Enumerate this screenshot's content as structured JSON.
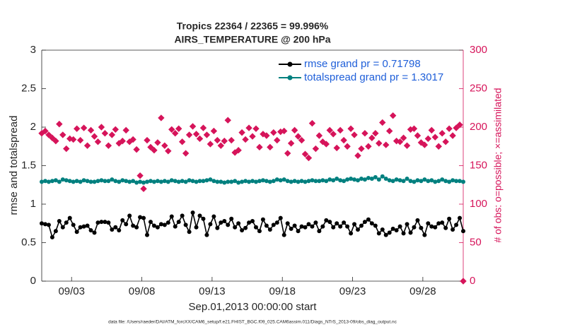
{
  "chart_data": {
    "type": "line",
    "title": "Tropics 22364 / 22365 = 99.996%",
    "subtitle": "AIRS_TEMPERATURE @ 200 hPa",
    "xlabel": "Sep.01,2013 00:00:00 start",
    "ylabel": "rmse and totalspread",
    "y2label": "# of obs: o=possible; ×=assimilated",
    "footnote": "data file: /Users/raeder/DAI/ATM_forcXX/CAM6_setup/f.e21.FHIST_BGC.f09_025.CAM6assim.011/Diags_NTrS_2013-09/obs_diag_output.nc",
    "xlim": [
      -0.125,
      29.875
    ],
    "xticks": [
      {
        "value": 2,
        "label": "09/03"
      },
      {
        "value": 7,
        "label": "09/08"
      },
      {
        "value": 12,
        "label": "09/13"
      },
      {
        "value": 17,
        "label": "09/18"
      },
      {
        "value": 22,
        "label": "09/23"
      },
      {
        "value": 27,
        "label": "09/28"
      }
    ],
    "ylim": [
      0,
      3
    ],
    "yticks": [
      0,
      0.5,
      1,
      1.5,
      2,
      2.5,
      3
    ],
    "y2lim": [
      0,
      300
    ],
    "y2ticks": [
      0,
      50,
      100,
      150,
      200,
      250,
      300
    ],
    "y2color": "#d6145a",
    "legend": "top-right",
    "x": [
      -0.125,
      0.125,
      0.375,
      0.625,
      0.875,
      1.125,
      1.375,
      1.625,
      1.875,
      2.125,
      2.375,
      2.625,
      2.875,
      3.125,
      3.375,
      3.625,
      3.875,
      4.125,
      4.375,
      4.625,
      4.875,
      5.125,
      5.375,
      5.625,
      5.875,
      6.125,
      6.375,
      6.625,
      6.875,
      7.125,
      7.375,
      7.625,
      7.875,
      8.125,
      8.375,
      8.625,
      8.875,
      9.125,
      9.375,
      9.625,
      9.875,
      10.125,
      10.375,
      10.625,
      10.875,
      11.125,
      11.375,
      11.625,
      11.875,
      12.125,
      12.375,
      12.625,
      12.875,
      13.125,
      13.375,
      13.625,
      13.875,
      14.125,
      14.375,
      14.625,
      14.875,
      15.125,
      15.375,
      15.625,
      15.875,
      16.125,
      16.375,
      16.625,
      16.875,
      17.125,
      17.375,
      17.625,
      17.875,
      18.125,
      18.375,
      18.625,
      18.875,
      19.125,
      19.375,
      19.625,
      19.875,
      20.125,
      20.375,
      20.625,
      20.875,
      21.125,
      21.375,
      21.625,
      21.875,
      22.125,
      22.375,
      22.625,
      22.875,
      23.125,
      23.375,
      23.625,
      23.875,
      24.125,
      24.375,
      24.625,
      24.875,
      25.125,
      25.375,
      25.625,
      25.875,
      26.125,
      26.375,
      26.625,
      26.875,
      27.125,
      27.375,
      27.625,
      27.875,
      28.125,
      28.375,
      28.625,
      28.875,
      29.125,
      29.375,
      29.625,
      29.875
    ],
    "series": [
      {
        "name": "rmse grand pr = 0.71798",
        "color": "#000000",
        "line": true,
        "values": [
          0.75,
          0.74,
          0.73,
          0.57,
          0.65,
          0.78,
          0.7,
          0.76,
          0.82,
          0.73,
          0.64,
          0.7,
          0.71,
          0.72,
          0.66,
          0.63,
          0.76,
          0.77,
          0.77,
          0.76,
          0.67,
          0.7,
          0.66,
          0.79,
          0.74,
          0.85,
          0.72,
          0.7,
          0.83,
          0.82,
          0.6,
          0.77,
          0.72,
          0.7,
          0.74,
          0.73,
          0.76,
          0.84,
          0.71,
          0.77,
          0.85,
          0.73,
          0.64,
          0.89,
          0.7,
          0.85,
          0.81,
          0.6,
          0.74,
          0.84,
          0.69,
          0.76,
          0.78,
          0.73,
          0.81,
          0.7,
          0.75,
          0.66,
          0.69,
          0.76,
          0.78,
          0.7,
          0.65,
          0.8,
          0.72,
          0.67,
          0.73,
          0.76,
          0.82,
          0.6,
          0.75,
          0.68,
          0.72,
          0.65,
          0.71,
          0.7,
          0.74,
          0.71,
          0.76,
          0.65,
          0.71,
          0.79,
          0.77,
          0.7,
          0.75,
          0.71,
          0.76,
          0.71,
          0.62,
          0.74,
          0.67,
          0.72,
          0.77,
          0.8,
          0.75,
          0.72,
          0.62,
          0.67,
          0.6,
          0.63,
          0.68,
          0.66,
          0.71,
          0.62,
          0.74,
          0.63,
          0.7,
          0.79,
          0.69,
          0.6,
          0.75,
          0.71,
          0.7,
          0.75,
          0.76,
          0.69,
          0.81,
          0.67,
          0.73,
          0.82,
          0.65
        ]
      },
      {
        "name": "totalspread grand pr = 1.3017",
        "color": "#00807f",
        "line": true,
        "values": [
          1.29,
          1.3,
          1.29,
          1.3,
          1.31,
          1.29,
          1.32,
          1.31,
          1.3,
          1.29,
          1.3,
          1.29,
          1.31,
          1.3,
          1.29,
          1.29,
          1.3,
          1.31,
          1.3,
          1.3,
          1.32,
          1.3,
          1.29,
          1.31,
          1.3,
          1.29,
          1.3,
          1.28,
          1.29,
          1.28,
          1.29,
          1.3,
          1.29,
          1.3,
          1.29,
          1.3,
          1.29,
          1.31,
          1.3,
          1.29,
          1.3,
          1.29,
          1.31,
          1.3,
          1.29,
          1.3,
          1.3,
          1.31,
          1.32,
          1.3,
          1.29,
          1.29,
          1.28,
          1.29,
          1.29,
          1.3,
          1.28,
          1.29,
          1.3,
          1.29,
          1.3,
          1.29,
          1.3,
          1.31,
          1.3,
          1.29,
          1.3,
          1.32,
          1.31,
          1.32,
          1.3,
          1.29,
          1.3,
          1.29,
          1.3,
          1.29,
          1.3,
          1.31,
          1.3,
          1.3,
          1.31,
          1.3,
          1.32,
          1.31,
          1.33,
          1.31,
          1.3,
          1.32,
          1.33,
          1.32,
          1.31,
          1.33,
          1.32,
          1.34,
          1.33,
          1.35,
          1.32,
          1.36,
          1.33,
          1.31,
          1.3,
          1.32,
          1.31,
          1.3,
          1.33,
          1.3,
          1.29,
          1.31,
          1.3,
          1.32,
          1.3,
          1.31,
          1.29,
          1.3,
          1.32,
          1.3,
          1.29,
          1.31,
          1.3,
          1.3,
          1.29
        ]
      },
      {
        "color": "#d6145a",
        "line": false,
        "axis": "y2",
        "values": [
          192,
          195,
          190,
          186,
          182,
          204,
          190,
          172,
          185,
          184,
          198,
          183,
          199,
          176,
          196,
          188,
          181,
          200,
          192,
          176,
          190,
          197,
          179,
          182,
          196,
          181,
          184,
          171,
          137,
          120,
          183,
          174,
          170,
          180,
          212,
          176,
          169,
          197,
          192,
          198,
          181,
          166,
          190,
          201,
          191,
          185,
          199,
          190,
          178,
          195,
          183,
          176,
          182,
          209,
          183,
          167,
          170,
          193,
          184,
          199,
          188,
          198,
          174,
          191,
          189,
          174,
          193,
          183,
          194,
          195,
          166,
          179,
          196,
          188,
          183,
          165,
          160,
          205,
          172,
          189,
          181,
          178,
          196,
          191,
          173,
          196,
          183,
          175,
          198,
          190,
          163,
          172,
          192,
          175,
          186,
          192,
          179,
          206,
          177,
          195,
          215,
          182,
          181,
          186,
          176,
          197,
          198,
          189,
          180,
          177,
          185,
          196,
          187,
          175,
          192,
          181,
          198,
          189,
          199,
          203,
          0
        ]
      }
    ]
  }
}
